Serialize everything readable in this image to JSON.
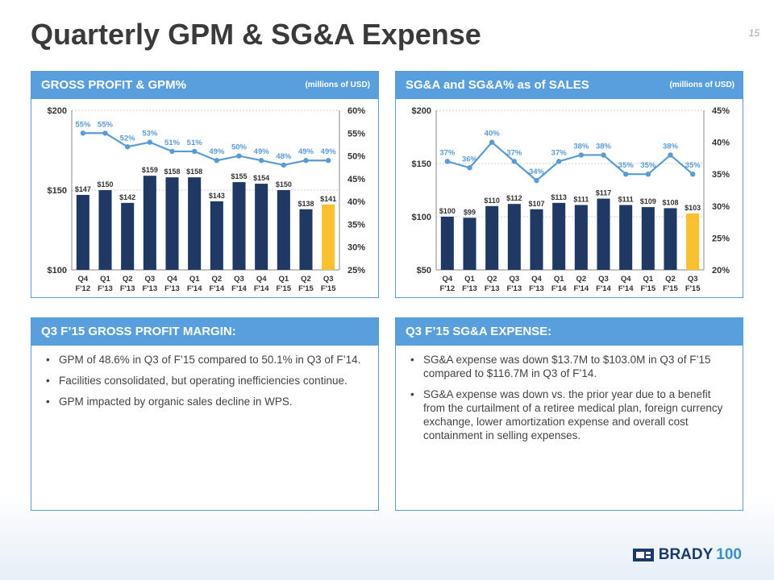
{
  "slide": {
    "title": "Quarterly GPM & SG&A Expense",
    "page_number": "15"
  },
  "panels": {
    "gp_chart": {
      "header": "GROSS PROFIT & GPM%",
      "units": "(millions of USD)"
    },
    "sga_chart": {
      "header": "SG&A and SG&A% as of SALES",
      "units": "(millions of USD)"
    },
    "gp_text": {
      "header": "Q3 F’15 GROSS PROFIT MARGIN:",
      "bullets": [
        "GPM of 48.6% in Q3 of F’15 compared to 50.1% in Q3 of F’14.",
        "Facilities consolidated, but operating inefficiencies continue.",
        "GPM impacted by organic sales decline in WPS."
      ]
    },
    "sga_text": {
      "header": "Q3 F’15 SG&A EXPENSE:",
      "bullets": [
        "SG&A expense was down $13.7M to $103.0M in Q3 of F’15 compared to $116.7M in Q3 of F’14.",
        "SG&A expense was down vs. the prior year due to a benefit from the curtailment of a retiree medical plan, foreign currency exchange, lower amortization expense and overall cost containment in selling expenses."
      ]
    }
  },
  "logo": {
    "text": "BRADY",
    "suffix": "100"
  },
  "chart_data": [
    {
      "type": "bar",
      "categories": [
        [
          "Q4",
          "F'12"
        ],
        [
          "Q1",
          "F'13"
        ],
        [
          "Q2",
          "F'13"
        ],
        [
          "Q3",
          "F'13"
        ],
        [
          "Q4",
          "F'13"
        ],
        [
          "Q1",
          "F'14"
        ],
        [
          "Q2",
          "F'14"
        ],
        [
          "Q3",
          "F'14"
        ],
        [
          "Q4",
          "F'14"
        ],
        [
          "Q1",
          "F'15"
        ],
        [
          "Q2",
          "F'15"
        ],
        [
          "Q3",
          "F'15"
        ]
      ],
      "series": [
        {
          "values": [
            147,
            150,
            142,
            159,
            158,
            158,
            143,
            155,
            154,
            150,
            138,
            141
          ],
          "labels": [
            "$147",
            "$150",
            "$142",
            "$159",
            "$158",
            "$158",
            "$143",
            "$155",
            "$154",
            "$150",
            "$138",
            "$141"
          ]
        },
        {
          "type": "line",
          "values": [
            55,
            55,
            52,
            53,
            51,
            51,
            49,
            50,
            49,
            48,
            49,
            49
          ],
          "labels": [
            "55%",
            "55%",
            "52%",
            "53%",
            "51%",
            "51%",
            "49%",
            "50%",
            "49%",
            "48%",
            "49%",
            "49%"
          ]
        }
      ],
      "left_axis": {
        "ticks": [
          "$100",
          "$150",
          "$200"
        ],
        "values": [
          100,
          150,
          200
        ],
        "ylim": [
          100,
          200
        ]
      },
      "right_axis": {
        "ticks": [
          "25%",
          "30%",
          "35%",
          "40%",
          "45%",
          "50%",
          "55%",
          "60%"
        ],
        "values": [
          25,
          30,
          35,
          40,
          45,
          50,
          55,
          60
        ],
        "ylim": [
          25,
          60
        ]
      },
      "colors": {
        "bar": "#1f3864",
        "highlight": "#fbc02d",
        "line": "#5b9bd5"
      }
    },
    {
      "type": "bar",
      "categories": [
        [
          "Q4",
          "F'12"
        ],
        [
          "Q1",
          "F'13"
        ],
        [
          "Q2",
          "F'13"
        ],
        [
          "Q3",
          "F'13"
        ],
        [
          "Q4",
          "F'13"
        ],
        [
          "Q1",
          "F'14"
        ],
        [
          "Q2",
          "F'14"
        ],
        [
          "Q3",
          "F'14"
        ],
        [
          "Q4",
          "F'14"
        ],
        [
          "Q1",
          "F'15"
        ],
        [
          "Q2",
          "F'15"
        ],
        [
          "Q3",
          "F'15"
        ]
      ],
      "series": [
        {
          "values": [
            100,
            99,
            110,
            112,
            107,
            113,
            111,
            117,
            111,
            109,
            108,
            103
          ],
          "labels": [
            "$100",
            "$99",
            "$110",
            "$112",
            "$107",
            "$113",
            "$111",
            "$117",
            "$111",
            "$109",
            "$108",
            "$103"
          ]
        },
        {
          "type": "line",
          "values": [
            37,
            36,
            40,
            37,
            34,
            37,
            38,
            38,
            35,
            35,
            38,
            35
          ],
          "labels": [
            "37%",
            "36%",
            "40%",
            "37%",
            "34%",
            "37%",
            "38%",
            "38%",
            "35%",
            "35%",
            "38%",
            "35%"
          ]
        }
      ],
      "left_axis": {
        "ticks": [
          "$50",
          "$100",
          "$150",
          "$200"
        ],
        "values": [
          50,
          100,
          150,
          200
        ],
        "ylim": [
          50,
          200
        ]
      },
      "right_axis": {
        "ticks": [
          "20%",
          "25%",
          "30%",
          "35%",
          "40%",
          "45%"
        ],
        "values": [
          20,
          25,
          30,
          35,
          40,
          45
        ],
        "ylim": [
          20,
          45
        ]
      },
      "colors": {
        "bar": "#1f3864",
        "highlight": "#fbc02d",
        "line": "#5b9bd5"
      }
    }
  ]
}
